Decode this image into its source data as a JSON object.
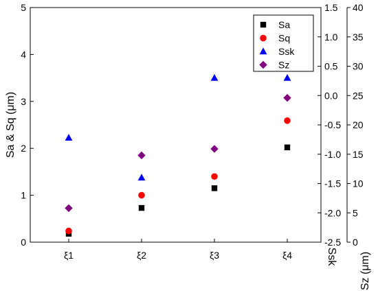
{
  "chart_data": {
    "type": "scatter",
    "categories": [
      "ξ1",
      "ξ2",
      "ξ3",
      "ξ4"
    ],
    "axes": {
      "left": {
        "label": "Sa & Sq (μm)",
        "ylim": [
          0,
          5
        ],
        "ticks": [
          "0",
          "1",
          "2",
          "3",
          "4",
          "5"
        ],
        "tick_values": [
          0,
          1,
          2,
          3,
          4,
          5
        ]
      },
      "ssk": {
        "label": "Ssk",
        "ylim": [
          -2.5,
          1.5
        ],
        "ticks": [
          "-2.5",
          "-2.0",
          "-1.5",
          "-1.0",
          "-0.5",
          "0.0",
          "0.5",
          "1.0",
          "1.5"
        ],
        "tick_values": [
          -2.5,
          -2.0,
          -1.5,
          -1.0,
          -0.5,
          0.0,
          0.5,
          1.0,
          1.5
        ]
      },
      "sz": {
        "label": "Sz (μm)",
        "ylim": [
          0,
          40
        ],
        "ticks": [
          "0",
          "5",
          "10",
          "15",
          "20",
          "25",
          "30",
          "35",
          "40"
        ],
        "tick_values": [
          0,
          5,
          10,
          15,
          20,
          25,
          30,
          35,
          40
        ]
      }
    },
    "series": [
      {
        "name": "Sa",
        "axis": "left",
        "marker": "square",
        "color": "#000000",
        "values": [
          0.18,
          0.73,
          1.15,
          2.02
        ]
      },
      {
        "name": "Sq",
        "axis": "left",
        "marker": "circle",
        "color": "#ff0000",
        "values": [
          0.24,
          1.0,
          1.4,
          2.59
        ]
      },
      {
        "name": "Ssk",
        "axis": "ssk",
        "marker": "triangle",
        "color": "#0000ff",
        "values": [
          -0.72,
          -1.4,
          0.3,
          0.3
        ]
      },
      {
        "name": "Sz",
        "axis": "sz",
        "marker": "diamond",
        "color": "#800080",
        "values": [
          5.8,
          14.8,
          15.9,
          24.6
        ]
      }
    ],
    "legend": {
      "position": "top-right"
    },
    "grid": false
  }
}
